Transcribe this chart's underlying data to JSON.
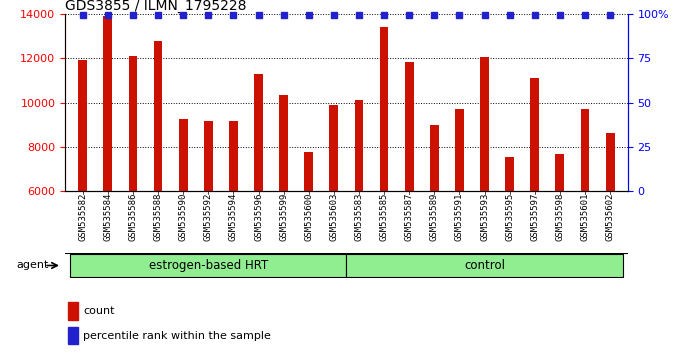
{
  "title": "GDS3855 / ILMN_1795228",
  "samples": [
    "GSM535582",
    "GSM535584",
    "GSM535586",
    "GSM535588",
    "GSM535590",
    "GSM535592",
    "GSM535594",
    "GSM535596",
    "GSM535599",
    "GSM535600",
    "GSM535603",
    "GSM535583",
    "GSM535585",
    "GSM535587",
    "GSM535589",
    "GSM535591",
    "GSM535593",
    "GSM535595",
    "GSM535597",
    "GSM535598",
    "GSM535601",
    "GSM535602"
  ],
  "counts": [
    11950,
    13900,
    12100,
    12800,
    9250,
    9150,
    9150,
    11300,
    10350,
    7750,
    9900,
    10100,
    13400,
    11850,
    9000,
    9700,
    12050,
    7550,
    11100,
    7700,
    9700,
    8650
  ],
  "groups": [
    {
      "label": "estrogen-based HRT",
      "start": 0,
      "end": 11
    },
    {
      "label": "control",
      "start": 11,
      "end": 22
    }
  ],
  "bar_color": "#CC1100",
  "percentile_color": "#2222CC",
  "ylim_left": [
    6000,
    14000
  ],
  "ylim_right": [
    0,
    100
  ],
  "yticks_left": [
    6000,
    8000,
    10000,
    12000,
    14000
  ],
  "yticks_right": [
    0,
    25,
    50,
    75,
    100
  ],
  "group_color": "#90EE90",
  "agent_label": "agent"
}
